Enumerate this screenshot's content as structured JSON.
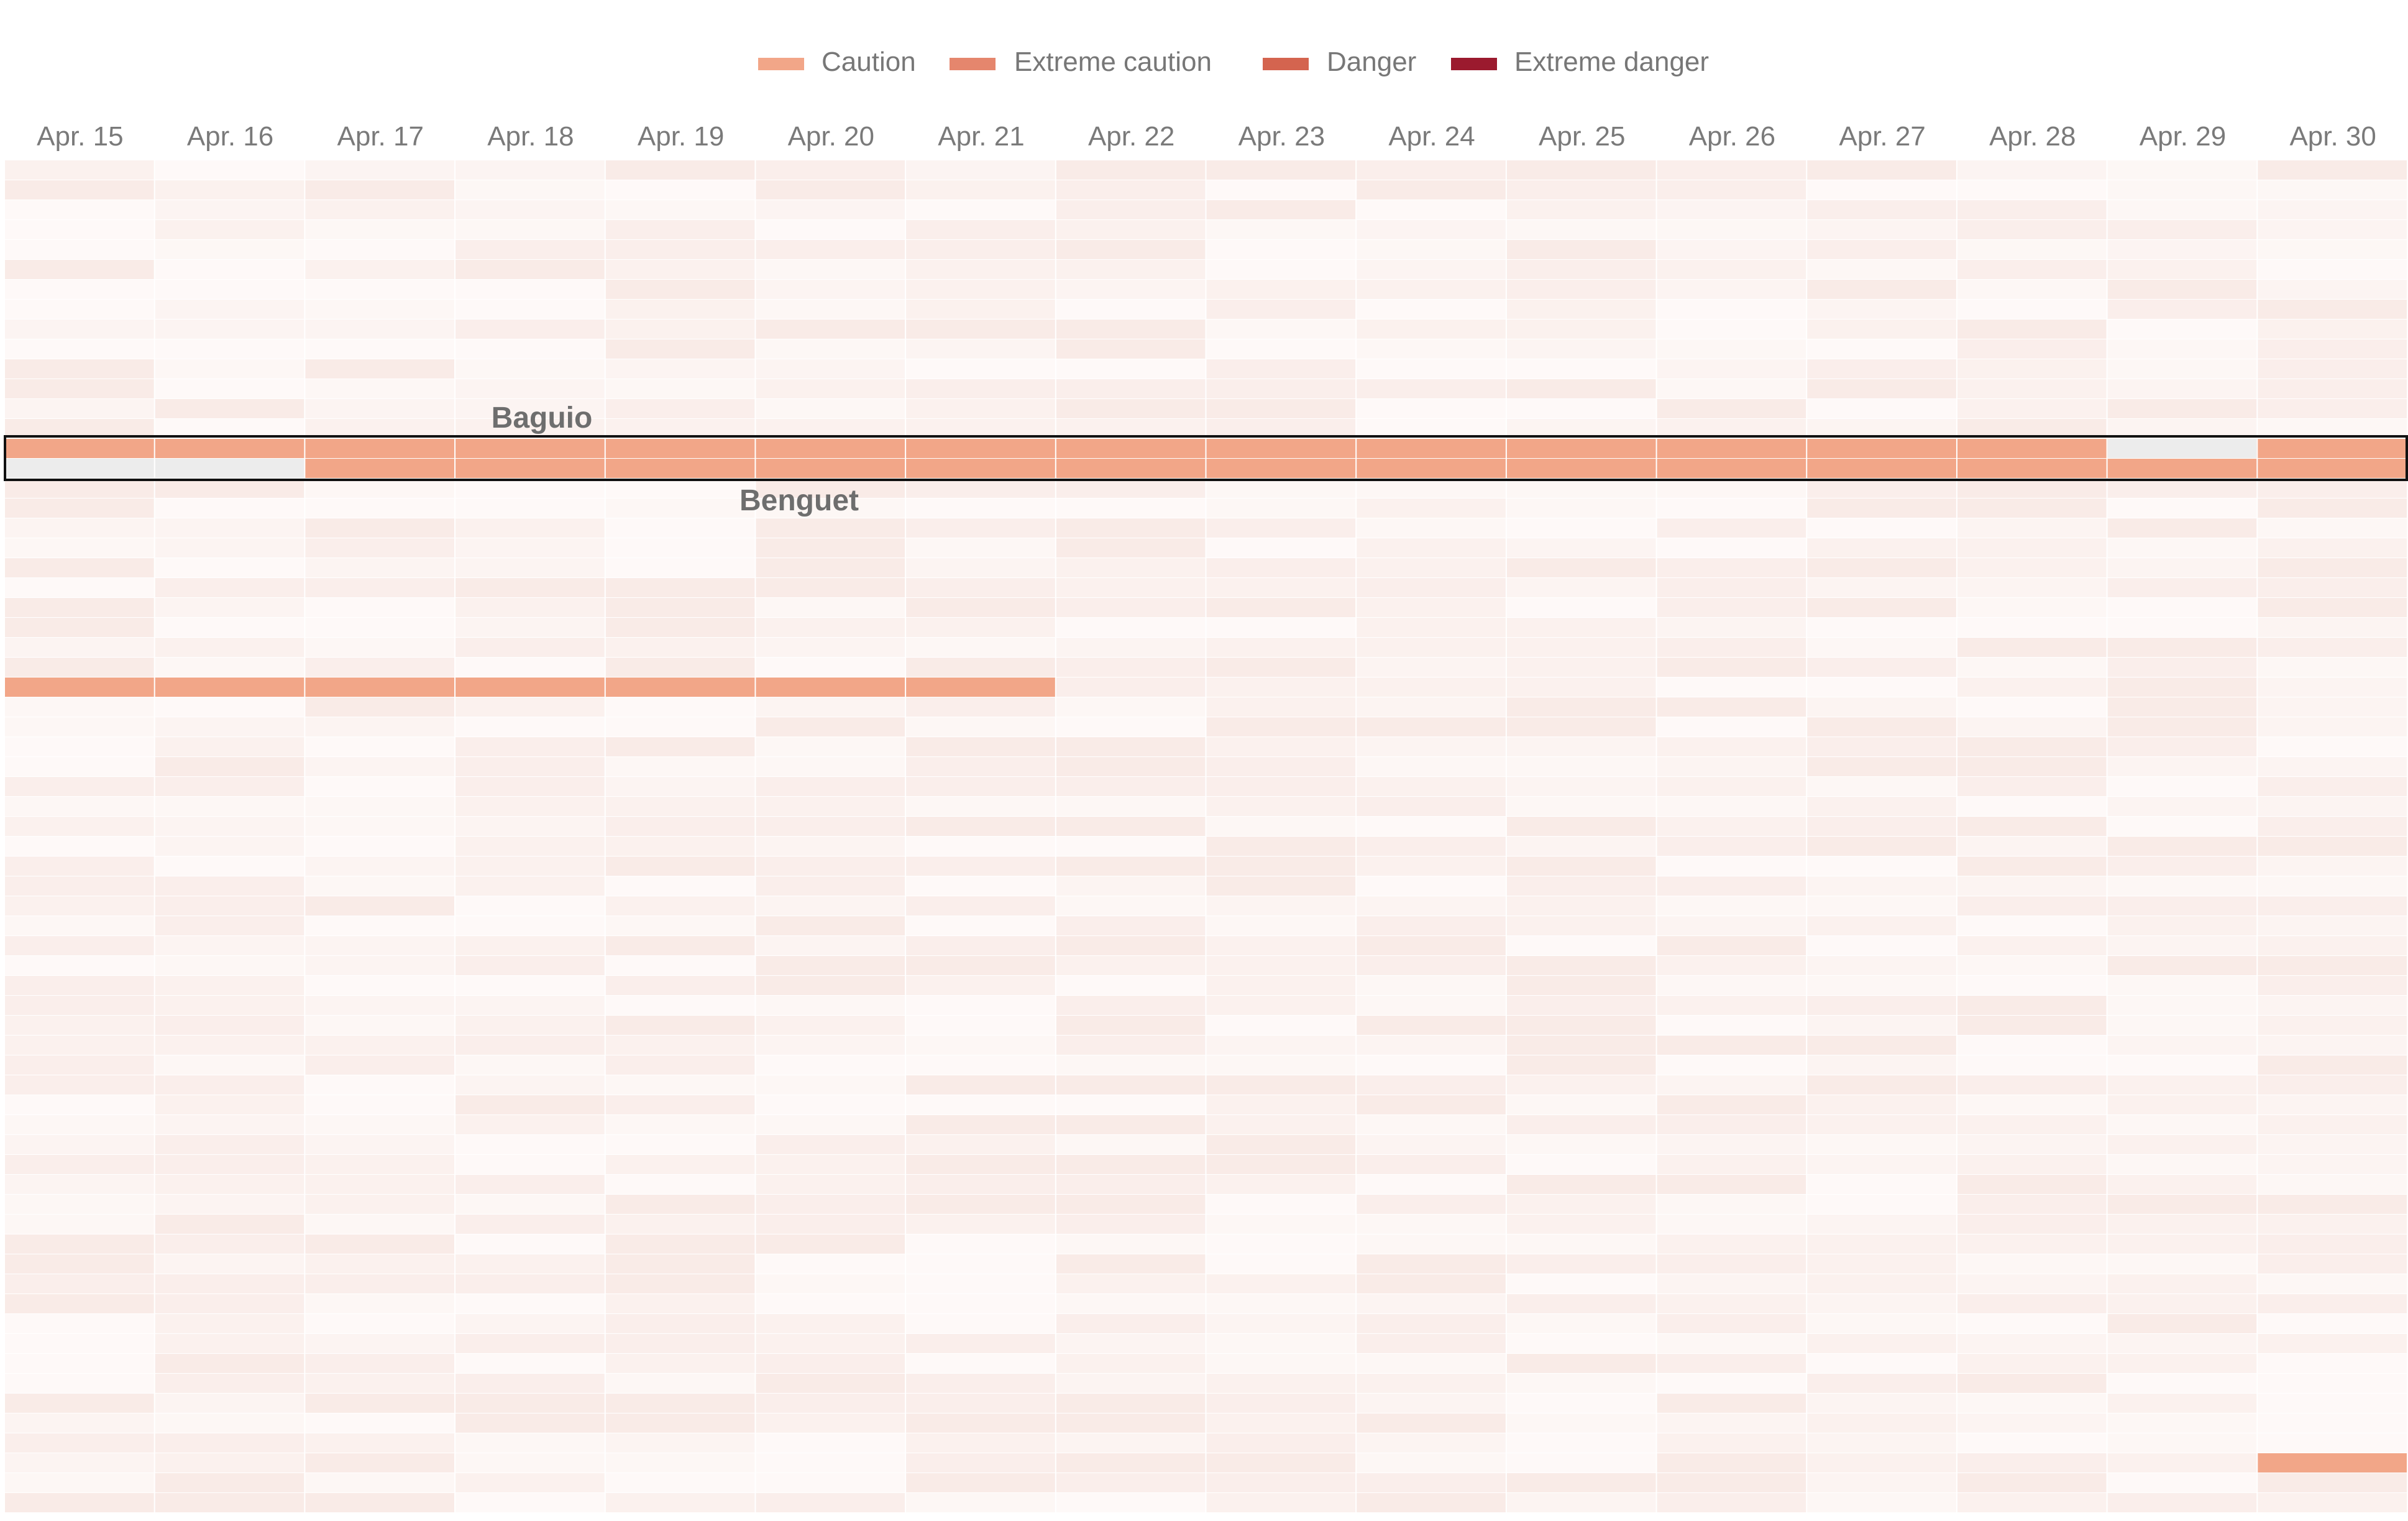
{
  "chart_data": {
    "type": "heatmap",
    "title": "",
    "xlabel": "",
    "ylabel": "",
    "x": [
      "Apr. 15",
      "Apr. 16",
      "Apr. 17",
      "Apr. 18",
      "Apr. 19",
      "Apr. 20",
      "Apr. 21",
      "Apr. 22",
      "Apr. 23",
      "Apr. 24",
      "Apr. 25",
      "Apr. 26",
      "Apr. 27",
      "Apr. 28",
      "Apr. 29",
      "Apr. 30"
    ],
    "legend": {
      "placement": "top-center",
      "entries": [
        {
          "label": "Caution",
          "color": "#f2a688"
        },
        {
          "label": "Extreme caution",
          "color": "#e5866d"
        },
        {
          "label": "Danger",
          "color": "#d4644f"
        },
        {
          "label": "Extreme danger",
          "color": "#9b1a2e"
        }
      ]
    },
    "category_colors": {
      "none": "#fbf1ee",
      "caution": "#f2a688",
      "extreme_caution": "#e5866d",
      "danger": "#d4644f",
      "extreme_danger": "#9b1a2e",
      "no_data": "#ececec"
    },
    "row_count": 68,
    "highlighted_rows": [
      {
        "label": "Baguio",
        "values": [
          "caution",
          "caution",
          "caution",
          "caution",
          "caution",
          "caution",
          "caution",
          "caution",
          "caution",
          "caution",
          "caution",
          "caution",
          "caution",
          "caution",
          "caution",
          "caution"
        ]
      },
      {
        "label": "Benguet",
        "values": [
          "none",
          "none",
          "caution",
          "caution",
          "caution",
          "caution",
          "caution",
          "caution",
          "caution",
          "caution",
          "caution",
          "caution",
          "caution",
          "caution",
          "caution",
          "caution"
        ]
      }
    ],
    "rows_with_caution": [
      {
        "row": 26,
        "from": "Apr. 15",
        "to": "Apr. 21",
        "level": "caution"
      },
      {
        "row": 65,
        "from": "Apr. 30",
        "to": "Apr. 30",
        "level": "caution"
      }
    ],
    "annotations": [
      {
        "text": "Baguio"
      },
      {
        "text": "Benguet"
      }
    ],
    "grid": false
  }
}
